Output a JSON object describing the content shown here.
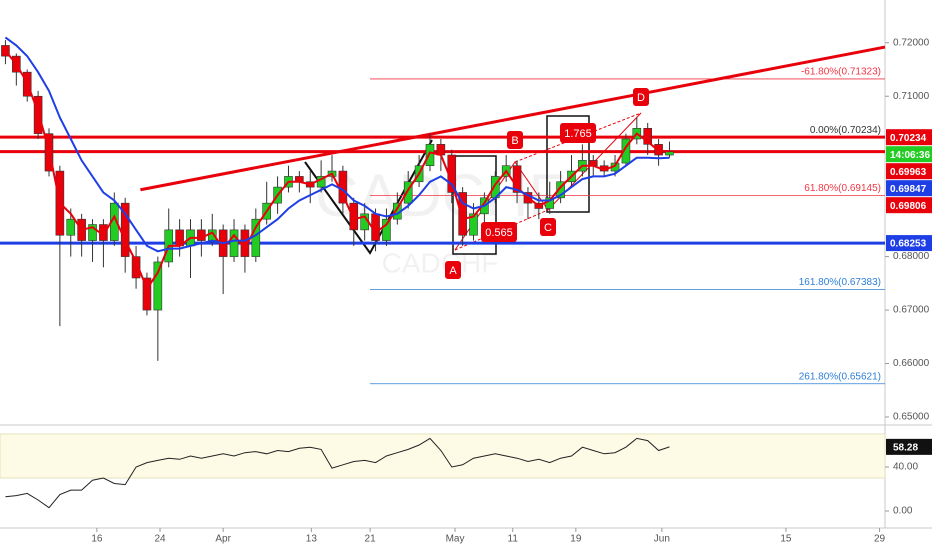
{
  "chart_data": {
    "type": "candlestick",
    "watermark": "CADCHF",
    "xlim": [
      -0.5,
      80.8
    ],
    "xticks": [
      {
        "value": 8.4,
        "label": "16"
      },
      {
        "value": 14.2,
        "label": "24"
      },
      {
        "value": 20,
        "label": "Apr"
      },
      {
        "value": 28.1,
        "label": "13"
      },
      {
        "value": 33.5,
        "label": "21"
      },
      {
        "value": 41.3,
        "label": "May"
      },
      {
        "value": 46.6,
        "label": "11"
      },
      {
        "value": 52.4,
        "label": "19"
      },
      {
        "value": 60.3,
        "label": "Jun"
      },
      {
        "value": 71.7,
        "label": "15"
      },
      {
        "value": 80.3,
        "label": "29"
      }
    ],
    "ylim": [
      0.6485,
      0.728
    ],
    "yticks": [
      {
        "value": 0.72,
        "label": "0.72000"
      },
      {
        "value": 0.71,
        "label": "0.71000"
      },
      {
        "value": 0.68,
        "label": "0.68000"
      },
      {
        "value": 0.67,
        "label": "0.67000"
      },
      {
        "value": 0.66,
        "label": "0.66000"
      },
      {
        "value": 0.65,
        "label": "0.65000"
      }
    ],
    "up_color": "#22cc22",
    "down_color": "#e8000b",
    "candles": [
      [
        0.7195,
        0.7205,
        0.716,
        0.7175
      ],
      [
        0.7175,
        0.718,
        0.712,
        0.7145
      ],
      [
        0.7145,
        0.715,
        0.709,
        0.71
      ],
      [
        0.71,
        0.711,
        0.702,
        0.703
      ],
      [
        0.703,
        0.704,
        0.695,
        0.696
      ],
      [
        0.696,
        0.697,
        0.667,
        0.684
      ],
      [
        0.684,
        0.689,
        0.68,
        0.687
      ],
      [
        0.687,
        0.688,
        0.68,
        0.683
      ],
      [
        0.683,
        0.687,
        0.679,
        0.686
      ],
      [
        0.686,
        0.687,
        0.678,
        0.683
      ],
      [
        0.683,
        0.692,
        0.682,
        0.69
      ],
      [
        0.69,
        0.691,
        0.677,
        0.68
      ],
      [
        0.68,
        0.682,
        0.674,
        0.676
      ],
      [
        0.676,
        0.677,
        0.669,
        0.67
      ],
      [
        0.67,
        0.68,
        0.6605,
        0.679
      ],
      [
        0.679,
        0.689,
        0.678,
        0.685
      ],
      [
        0.685,
        0.687,
        0.68,
        0.682
      ],
      [
        0.682,
        0.687,
        0.676,
        0.685
      ],
      [
        0.685,
        0.687,
        0.68,
        0.683
      ],
      [
        0.683,
        0.688,
        0.682,
        0.685
      ],
      [
        0.685,
        0.686,
        0.673,
        0.68
      ],
      [
        0.68,
        0.687,
        0.679,
        0.685
      ],
      [
        0.685,
        0.686,
        0.677,
        0.68
      ],
      [
        0.68,
        0.689,
        0.679,
        0.687
      ],
      [
        0.687,
        0.694,
        0.686,
        0.69
      ],
      [
        0.69,
        0.695,
        0.688,
        0.693
      ],
      [
        0.693,
        0.697,
        0.692,
        0.695
      ],
      [
        0.695,
        0.696,
        0.692,
        0.694
      ],
      [
        0.694,
        0.696,
        0.69,
        0.693
      ],
      [
        0.693,
        0.698,
        0.692,
        0.695
      ],
      [
        0.695,
        0.699,
        0.694,
        0.696
      ],
      [
        0.696,
        0.697,
        0.688,
        0.69
      ],
      [
        0.69,
        0.691,
        0.682,
        0.685
      ],
      [
        0.685,
        0.69,
        0.683,
        0.688
      ],
      [
        0.688,
        0.689,
        0.681,
        0.683
      ],
      [
        0.683,
        0.689,
        0.682,
        0.687
      ],
      [
        0.687,
        0.692,
        0.686,
        0.69
      ],
      [
        0.69,
        0.696,
        0.689,
        0.694
      ],
      [
        0.694,
        0.699,
        0.693,
        0.697
      ],
      [
        0.697,
        0.703,
        0.696,
        0.701
      ],
      [
        0.701,
        0.702,
        0.696,
        0.699
      ],
      [
        0.699,
        0.7,
        0.69,
        0.692
      ],
      [
        0.692,
        0.693,
        0.682,
        0.684
      ],
      [
        0.684,
        0.69,
        0.683,
        0.688
      ],
      [
        0.688,
        0.692,
        0.686,
        0.691
      ],
      [
        0.691,
        0.696,
        0.69,
        0.695
      ],
      [
        0.695,
        0.699,
        0.694,
        0.697
      ],
      [
        0.697,
        0.698,
        0.69,
        0.692
      ],
      [
        0.692,
        0.693,
        0.687,
        0.69
      ],
      [
        0.69,
        0.692,
        0.687,
        0.689
      ],
      [
        0.689,
        0.694,
        0.688,
        0.691
      ],
      [
        0.691,
        0.696,
        0.69,
        0.694
      ],
      [
        0.694,
        0.699,
        0.693,
        0.696
      ],
      [
        0.696,
        0.701,
        0.695,
        0.698
      ],
      [
        0.698,
        0.699,
        0.695,
        0.697
      ],
      [
        0.697,
        0.698,
        0.695,
        0.696
      ],
      [
        0.696,
        0.699,
        0.695,
        0.6975
      ],
      [
        0.6975,
        0.703,
        0.697,
        0.702
      ],
      [
        0.702,
        0.706,
        0.701,
        0.704
      ],
      [
        0.704,
        0.705,
        0.699,
        0.701
      ],
      [
        0.701,
        0.702,
        0.697,
        0.699
      ],
      [
        0.699,
        0.7015,
        0.6985,
        0.6996
      ]
    ],
    "series": [
      {
        "color": "#e8000b",
        "values": [
          0.7185,
          0.716,
          0.7125,
          0.707,
          0.7,
          0.69,
          0.688,
          0.685,
          0.6855,
          0.684,
          0.6875,
          0.683,
          0.679,
          0.674,
          0.677,
          0.682,
          0.682,
          0.6835,
          0.6835,
          0.6845,
          0.6815,
          0.684,
          0.6815,
          0.6855,
          0.6885,
          0.6915,
          0.694,
          0.694,
          0.6935,
          0.6945,
          0.6955,
          0.6915,
          0.687,
          0.6875,
          0.6845,
          0.686,
          0.689,
          0.6925,
          0.6955,
          0.6995,
          0.699,
          0.694,
          0.687,
          0.6875,
          0.69,
          0.6935,
          0.696,
          0.693,
          0.691,
          0.6895,
          0.6905,
          0.693,
          0.695,
          0.697,
          0.697,
          0.6962,
          0.697,
          0.7005,
          0.703,
          0.7015,
          0.6998,
          0.6997
        ]
      },
      {
        "color": "#1f3fe6",
        "values": [
          0.721,
          0.7195,
          0.7175,
          0.7145,
          0.711,
          0.706,
          0.702,
          0.698,
          0.695,
          0.692,
          0.6905,
          0.688,
          0.685,
          0.682,
          0.681,
          0.6815,
          0.6815,
          0.682,
          0.6825,
          0.683,
          0.6825,
          0.683,
          0.683,
          0.684,
          0.6855,
          0.687,
          0.689,
          0.6905,
          0.6915,
          0.6925,
          0.6935,
          0.6925,
          0.6905,
          0.6895,
          0.688,
          0.6875,
          0.688,
          0.6895,
          0.6915,
          0.694,
          0.695,
          0.6935,
          0.69,
          0.689,
          0.6895,
          0.691,
          0.693,
          0.6925,
          0.6915,
          0.6905,
          0.6905,
          0.6915,
          0.693,
          0.6945,
          0.695,
          0.695,
          0.6955,
          0.697,
          0.6985,
          0.6985,
          0.6984,
          0.6985
        ]
      }
    ],
    "levels": [
      {
        "value": 0.70234,
        "color": "#e8000b"
      },
      {
        "value": 0.69963,
        "color": "#e8000b"
      },
      {
        "value": 0.68253,
        "color": "#1f3fe6"
      }
    ],
    "fib": [
      {
        "value": 0.71323,
        "label": "-61.80%(0.71323)",
        "color": "#f23645"
      },
      {
        "value": 0.70234,
        "label": "0.00%(0.70234)",
        "color": "#333333"
      },
      {
        "value": 0.69145,
        "label": "61.80%(0.69145)",
        "color": "#f23645"
      },
      {
        "value": 0.67383,
        "label": "161.80%(0.67383)",
        "color": "#2e7fd6"
      },
      {
        "value": 0.65621,
        "label": "261.80%(0.65621)",
        "color": "#2e7fd6"
      }
    ],
    "trendline": {
      "x": [
        12.4,
        80.8
      ],
      "y": [
        0.6925,
        0.7192
      ],
      "color": "#e8000b"
    },
    "price_labels": [
      {
        "value": 0.70234,
        "label": "0.70234",
        "color": "#e8000b"
      },
      {
        "label": "14:06:36",
        "color": "#22cc22"
      },
      {
        "value": 0.69963,
        "label": "0.69963",
        "color": "#e8000b"
      },
      {
        "value": 0.69847,
        "label": "0.69847",
        "color": "#1f3fe6"
      },
      {
        "value": 0.69806,
        "label": "0.69806",
        "color": "#e8000b"
      },
      {
        "value": 0.68253,
        "label": "0.68253",
        "color": "#1f3fe6"
      }
    ],
    "points": [
      "A",
      "B",
      "C",
      "D"
    ],
    "ratios": [
      "0.565",
      "1.765"
    ],
    "rsi": {
      "values": [
        13,
        14,
        16,
        10,
        3,
        15,
        19,
        19,
        28,
        30,
        25,
        24,
        40,
        44,
        46,
        48,
        47,
        50,
        48,
        50,
        52,
        50,
        53,
        54,
        52,
        55,
        54,
        57,
        58,
        56,
        39,
        42,
        45,
        46,
        44,
        50,
        53,
        56,
        60,
        66,
        55,
        40,
        42,
        48,
        50,
        52,
        50,
        48,
        45,
        47,
        44,
        48,
        50,
        58,
        55,
        52,
        53,
        58,
        66,
        64,
        55,
        58.28
      ],
      "value_label": "58.28",
      "ylim": [
        -12.7,
        73.6
      ],
      "band": [
        30,
        70
      ],
      "yticks": [
        {
          "value": 40,
          "label": "40.00"
        },
        {
          "value": 0,
          "label": "0.00"
        }
      ]
    }
  }
}
